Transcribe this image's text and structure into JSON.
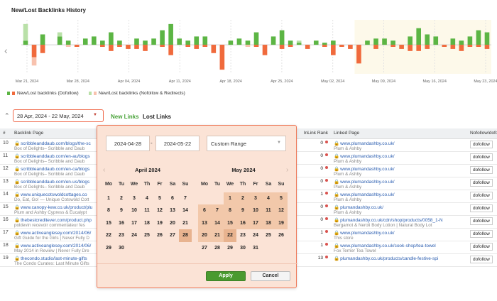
{
  "chart_data": {
    "type": "bar",
    "title": "New/Lost Backlinks History",
    "x_tick_labels": [
      "Mar 21, 2024",
      "Mar 28, 2024",
      "Apr 04, 2024",
      "Apr 11, 2024",
      "Apr 18, 2024",
      "Apr 25, 2024",
      "May 02, 2024",
      "May 09, 2024",
      "May 16, 2024",
      "May 23, 2024"
    ],
    "highlighted_range": [
      "Apr 28, 2024",
      "May 22, 2024"
    ],
    "series": [
      {
        "name": "New/Lost backlinks (Dofollow)",
        "color_new": "#5cb544",
        "color_lost": "#f06a3c"
      },
      {
        "name": "New/Lost backlinks (Nofollow & Redirects)",
        "color_new": "#b9e0a8",
        "color_lost": "#f8c2ae"
      }
    ],
    "bars": [
      {
        "df_new": 2,
        "df_lost": 0,
        "nf_new": 8,
        "nf_lost": 0
      },
      {
        "df_new": 0,
        "df_lost": -6,
        "nf_new": 0,
        "nf_lost": -4
      },
      {
        "df_new": 5,
        "df_lost": -4,
        "nf_new": 0,
        "nf_lost": 0
      },
      {
        "df_new": 0,
        "df_lost": 0,
        "nf_new": 0,
        "nf_lost": 0
      },
      {
        "df_new": 4,
        "df_lost": 0,
        "nf_new": 2,
        "nf_lost": 0
      },
      {
        "df_new": 2,
        "df_lost": 0,
        "nf_new": 0,
        "nf_lost": -1
      },
      {
        "df_new": 0,
        "df_lost": -1,
        "nf_new": 0,
        "nf_lost": 0
      },
      {
        "df_new": 3,
        "df_lost": 0,
        "nf_new": 0,
        "nf_lost": 0
      },
      {
        "df_new": 4,
        "df_lost": 0,
        "nf_new": 0,
        "nf_lost": 0
      },
      {
        "df_new": 2,
        "df_lost": -1,
        "nf_new": 0,
        "nf_lost": 0
      },
      {
        "df_new": 6,
        "df_lost": -3,
        "nf_new": 0,
        "nf_lost": 0
      },
      {
        "df_new": 2,
        "df_lost": -1,
        "nf_new": 0,
        "nf_lost": 0
      },
      {
        "df_new": 0,
        "df_lost": -2,
        "nf_new": 0,
        "nf_lost": 0
      },
      {
        "df_new": 3,
        "df_lost": -2,
        "nf_new": 0,
        "nf_lost": 0
      },
      {
        "df_new": 2,
        "df_lost": -3,
        "nf_new": 0,
        "nf_lost": 0
      },
      {
        "df_new": 3,
        "df_lost": 0,
        "nf_new": 0,
        "nf_lost": 0
      },
      {
        "df_new": 7,
        "df_lost": -1,
        "nf_new": 0,
        "nf_lost": 0
      },
      {
        "df_new": 10,
        "df_lost": -5,
        "nf_new": 0,
        "nf_lost": 0
      },
      {
        "df_new": 3,
        "df_lost": 0,
        "nf_new": 0,
        "nf_lost": 0
      },
      {
        "df_new": 2,
        "df_lost": -1,
        "nf_new": 0,
        "nf_lost": 0
      },
      {
        "df_new": 4,
        "df_lost": -2,
        "nf_new": 0,
        "nf_lost": 0
      },
      {
        "df_new": 4,
        "df_lost": -1,
        "nf_new": 0,
        "nf_lost": 0
      },
      {
        "df_new": 0,
        "df_lost": -4,
        "nf_new": 0,
        "nf_lost": 0
      },
      {
        "df_new": 0,
        "df_lost": -12,
        "nf_new": 0,
        "nf_lost": 0
      },
      {
        "df_new": 2,
        "df_lost": 0,
        "nf_new": 0,
        "nf_lost": 0
      },
      {
        "df_new": 3,
        "df_lost": 0,
        "nf_new": 0,
        "nf_lost": 0
      },
      {
        "df_new": 2,
        "df_lost": 0,
        "nf_new": 0,
        "nf_lost": -1
      },
      {
        "df_new": 6,
        "df_lost": -1,
        "nf_new": 0,
        "nf_lost": 0
      },
      {
        "df_new": 0,
        "df_lost": -5,
        "nf_new": 0,
        "nf_lost": 0
      },
      {
        "df_new": 4,
        "df_lost": 0,
        "nf_new": 0,
        "nf_lost": 0
      },
      {
        "df_new": 7,
        "df_lost": -2,
        "nf_new": 0,
        "nf_lost": 0
      },
      {
        "df_new": 2,
        "df_lost": -1,
        "nf_new": 0,
        "nf_lost": 0
      },
      {
        "df_new": 1,
        "df_lost": 0,
        "nf_new": 1,
        "nf_lost": 0
      },
      {
        "df_new": 0,
        "df_lost": -2,
        "nf_new": 0,
        "nf_lost": 0
      },
      {
        "df_new": 2,
        "df_lost": 0,
        "nf_new": 0,
        "nf_lost": 0
      },
      {
        "df_new": 1,
        "df_lost": -1,
        "nf_new": 0,
        "nf_lost": 0
      },
      {
        "df_new": 2,
        "df_lost": -5,
        "nf_new": 0,
        "nf_lost": 0
      },
      {
        "df_new": 0,
        "df_lost": -1,
        "nf_new": 0,
        "nf_lost": 0
      },
      {
        "df_new": 0,
        "df_lost": -2,
        "nf_new": 0,
        "nf_lost": 0
      },
      {
        "df_new": 0,
        "df_lost": -9,
        "nf_new": 0,
        "nf_lost": 0
      },
      {
        "df_new": 2,
        "df_lost": 0,
        "nf_new": 0,
        "nf_lost": 0
      },
      {
        "df_new": 3,
        "df_lost": -2,
        "nf_new": 0,
        "nf_lost": 0
      },
      {
        "df_new": 3,
        "df_lost": 0,
        "nf_new": 0,
        "nf_lost": 0
      },
      {
        "df_new": 2,
        "df_lost": -1,
        "nf_new": 0,
        "nf_lost": 0
      },
      {
        "df_new": 0,
        "df_lost": -2,
        "nf_new": 0,
        "nf_lost": 0
      },
      {
        "df_new": 4,
        "df_lost": -3,
        "nf_new": 0,
        "nf_lost": 0
      },
      {
        "df_new": 8,
        "df_lost": -3,
        "nf_new": 0,
        "nf_lost": 0
      },
      {
        "df_new": 5,
        "df_lost": -2,
        "nf_new": 0,
        "nf_lost": 0
      },
      {
        "df_new": 4,
        "df_lost": 0,
        "nf_new": 0,
        "nf_lost": 0
      },
      {
        "df_new": 0,
        "df_lost": -1,
        "nf_new": 0,
        "nf_lost": 0
      },
      {
        "df_new": 3,
        "df_lost": -2,
        "nf_new": 0,
        "nf_lost": 0
      },
      {
        "df_new": 2,
        "df_lost": -3,
        "nf_new": 0,
        "nf_lost": 0
      },
      {
        "df_new": 4,
        "df_lost": -1,
        "nf_new": 0,
        "nf_lost": 0
      },
      {
        "df_new": 7,
        "df_lost": -1,
        "nf_new": 0,
        "nf_lost": 0
      },
      {
        "df_new": 6,
        "df_lost": -2,
        "nf_new": 0,
        "nf_lost": 0
      }
    ],
    "ylim": [
      -14,
      12
    ]
  },
  "legend": {
    "dofollow": "New/Lost backlinks (Dofollow)",
    "nofollow": "New/Lost backlinks (Nofollow & Redirects)"
  },
  "toolbar": {
    "date_range": "28 Apr, 2024 - 22 May, 2024",
    "new_links": "New Links",
    "lost_links": "Lost Links"
  },
  "table": {
    "headers": [
      "#",
      "Backlink Page",
      "InLink Rank",
      "Linked Page",
      "Nofollow/dofollow"
    ],
    "rows": [
      {
        "n": "10",
        "url": "scribbleanddaub.com/blogs/the-sc",
        "title": "Box of Delights– Scribble and Daub",
        "rank": "0",
        "linked_url": "www.plumandashby.co.uk/",
        "linked_title": "Plum & Ashby",
        "follow": "dofollow"
      },
      {
        "n": "11",
        "url": "scribbleanddaub.com/en-au/blogs",
        "title": "Box of Delights– Scribble and Daub",
        "rank": "0",
        "linked_url": "www.plumandashby.co.uk/",
        "linked_title": "Plum & Ashby",
        "follow": "dofollow"
      },
      {
        "n": "12",
        "url": "scribbleanddaub.com/en-ca/blogs",
        "title": "Box of Delights– Scribble and Daub",
        "rank": "0",
        "linked_url": "www.plumandashby.co.uk/",
        "linked_title": "Plum & Ashby",
        "follow": "dofollow"
      },
      {
        "n": "13",
        "url": "scribbleanddaub.com/en-us/blogs",
        "title": "Box of Delights– Scribble and Daub",
        "rank": "0",
        "linked_url": "www.plumandashby.co.uk/",
        "linked_title": "Plum & Ashby",
        "follow": "dofollow"
      },
      {
        "n": "14",
        "url": "www.uniquecotswoldcottages.co",
        "title": "Do, Eat, Go! — Unique Cotswold Cott",
        "rank": "1",
        "linked_url": "www.plumandashby.co.uk/",
        "linked_title": "Plum & Ashby",
        "follow": "dofollow"
      },
      {
        "n": "15",
        "url": "www.canopy-kew.co.uk/product/plu",
        "title": "Plum and Ashby Cypress & Eucalypt",
        "rank": "0",
        "linked_url": "plumandashby.co.uk/",
        "linked_title": "Plum & Ashby",
        "follow": "dofollow"
      },
      {
        "n": "16",
        "url": "thebestcreditever.com/product.php",
        "title": "poldevin recevoir commentateur fes",
        "rank": "0",
        "linked_url": "plumandashby.co.uk/cdn/shop/products/0058_1-N",
        "linked_title": "Bergamot & Neroli Body Lotion | Natural Body Lot",
        "follow": "dofollow"
      },
      {
        "n": "17",
        "url": "www.activeanglesey.com/2014/06/",
        "title": "Gift Guide for the Girls | Never Fully D",
        "rank": "1",
        "linked_url": "www.plumandashby.co.uk/",
        "linked_title": "This store",
        "follow": "dofollow"
      },
      {
        "n": "18",
        "url": "www.activeanglesey.com/2014/06/",
        "title": "May 2014 in Review | Never Fully Dre",
        "rank": "1",
        "linked_url": "www.plumandashby.co.uk/cook-shop/tea-towel",
        "linked_title": "Fox Terrier Tea Towel",
        "follow": "dofollow"
      },
      {
        "n": "19",
        "url": "thecondo.studio/last-minute-gifts",
        "title": "The Condo Curates: Last Minute Gifts",
        "rank": "13",
        "linked_url": "plumandashby.co.uk/products/candle-festive-spi",
        "linked_title": "",
        "follow": "dofollow"
      }
    ]
  },
  "picker": {
    "start": "2024-04-28",
    "end": "2024-05-22",
    "dash": "-",
    "preset": "Custom Range",
    "left_month": "April 2024",
    "right_month": "May 2024",
    "weekdays": [
      "Mo",
      "Tu",
      "We",
      "Th",
      "Fr",
      "Sa",
      "Su"
    ],
    "apply": "Apply",
    "cancel": "Cancel"
  }
}
